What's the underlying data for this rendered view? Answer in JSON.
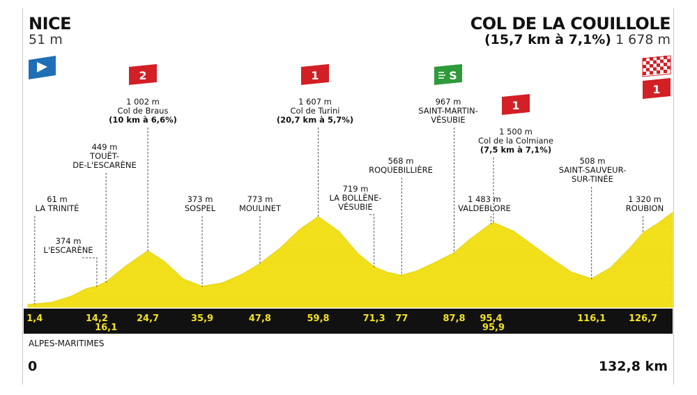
{
  "header": {
    "start_name": "NICE",
    "start_alt": "51 m",
    "finish_name": "COL DE LA COUILLOLE",
    "finish_climb": "(15,7 km à 7,1%)",
    "finish_alt": "1 678 m"
  },
  "footer": {
    "region": "ALPES-MARITIMES",
    "dist_start": "0",
    "dist_end": "132,8 km"
  },
  "colors": {
    "profile_fill": "#f4e21d",
    "profile_shade": "#e6d312",
    "distance_band": "#111111",
    "distance_text": "#f4e21d",
    "flag_red": "#d31f26",
    "flag_green": "#2e9a3a",
    "start_flag": "#1f6fb6"
  },
  "chart_data": {
    "type": "area",
    "x_unit": "km",
    "y_unit": "m",
    "xlim": [
      0,
      132.8
    ],
    "ylim": [
      0,
      1678
    ],
    "profile": [
      [
        0,
        51
      ],
      [
        1.4,
        61
      ],
      [
        5,
        90
      ],
      [
        9,
        200
      ],
      [
        12,
        330
      ],
      [
        14.2,
        374
      ],
      [
        16.1,
        449
      ],
      [
        20,
        720
      ],
      [
        24.7,
        1002
      ],
      [
        28,
        820
      ],
      [
        32,
        500
      ],
      [
        35.9,
        373
      ],
      [
        40,
        430
      ],
      [
        44,
        580
      ],
      [
        47.8,
        773
      ],
      [
        52,
        1050
      ],
      [
        56,
        1380
      ],
      [
        59.8,
        1607
      ],
      [
        64,
        1350
      ],
      [
        68,
        950
      ],
      [
        71.3,
        719
      ],
      [
        74,
        620
      ],
      [
        77,
        568
      ],
      [
        80,
        640
      ],
      [
        84,
        800
      ],
      [
        87.8,
        967
      ],
      [
        91,
        1200
      ],
      [
        95.4,
        1483
      ],
      [
        95.9,
        1500
      ],
      [
        100,
        1350
      ],
      [
        104,
        1100
      ],
      [
        108,
        850
      ],
      [
        112,
        620
      ],
      [
        116.1,
        508
      ],
      [
        120,
        700
      ],
      [
        124,
        1050
      ],
      [
        126.7,
        1320
      ],
      [
        130,
        1500
      ],
      [
        132.8,
        1678
      ]
    ],
    "markers": [
      {
        "km": 1.4,
        "km_label": "1,4",
        "alt": "61 m",
        "name": [
          "LA TRINITÉ"
        ]
      },
      {
        "km": 14.2,
        "km_label": "14,2",
        "alt": "374 m",
        "name": [
          "L'ESCARÈNE"
        ]
      },
      {
        "km": 16.1,
        "km_label": "16,1",
        "alt": "449 m",
        "name": [
          "TOUËT-",
          "DE-L'ESCARÈNE"
        ]
      },
      {
        "km": 24.7,
        "km_label": "24,7",
        "alt": "1 002 m",
        "name": [
          "Col de Braus"
        ],
        "climb": "(10 km à 6,6%)",
        "category": "2"
      },
      {
        "km": 35.9,
        "km_label": "35,9",
        "alt": "373 m",
        "name": [
          "SOSPEL"
        ]
      },
      {
        "km": 47.8,
        "km_label": "47,8",
        "alt": "773 m",
        "name": [
          "MOULINET"
        ]
      },
      {
        "km": 59.8,
        "km_label": "59,8",
        "alt": "1 607 m",
        "name": [
          "Col de Turini"
        ],
        "climb": "(20,7 km à 5,7%)",
        "category": "1"
      },
      {
        "km": 71.3,
        "km_label": "71,3",
        "alt": "719 m",
        "name": [
          "LA BOLLÈNE-",
          "VÉSUBIE"
        ]
      },
      {
        "km": 77,
        "km_label": "77",
        "alt": "568 m",
        "name": [
          "ROQUEBILLIÈRE"
        ]
      },
      {
        "km": 87.8,
        "km_label": "87,8",
        "alt": "967 m",
        "name": [
          "SAINT-MARTIN-",
          "VÉSUBIE"
        ],
        "sprint": "S"
      },
      {
        "km": 95.4,
        "km_label": "95,4",
        "alt": "1 483 m",
        "name": [
          "VALDEBLORE"
        ]
      },
      {
        "km": 95.9,
        "km_label": "95,9",
        "alt": "1 500 m",
        "name": [
          "Col de la Colmiane"
        ],
        "climb": "(7,5 km à 7,1%)",
        "category": "1"
      },
      {
        "km": 116.1,
        "km_label": "116,1",
        "alt": "508 m",
        "name": [
          "SAINT-SAUVEUR-",
          "SUR-TINÉE"
        ]
      },
      {
        "km": 126.7,
        "km_label": "126,7",
        "alt": "1 320 m",
        "name": [
          "ROUBION"
        ]
      }
    ],
    "finish_category": "1"
  }
}
